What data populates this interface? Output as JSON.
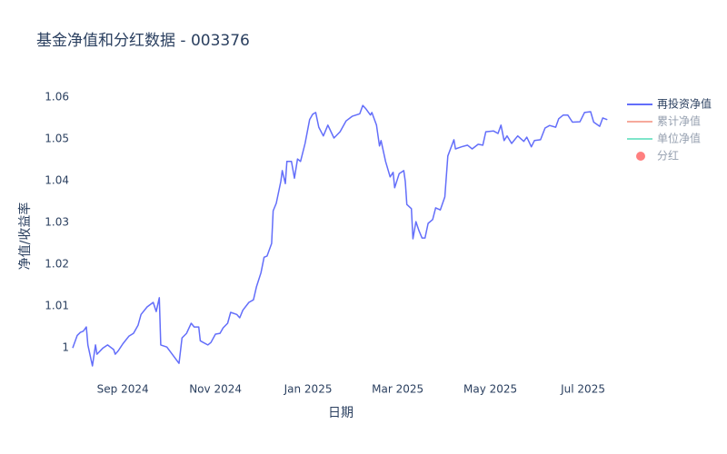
{
  "chart_data": {
    "type": "line",
    "title": "基金净值和分红数据 - 003376",
    "x_label": "日期",
    "y_label": "净值/收益率",
    "grid": false,
    "legend": "right",
    "xlim": [
      "2024-07-30",
      "2025-07-24"
    ],
    "xticks": [
      {
        "value": "2024-09-01",
        "label": "Sep 2024"
      },
      {
        "value": "2024-11-01",
        "label": "Nov 2024"
      },
      {
        "value": "2025-01-01",
        "label": "Jan 2025"
      },
      {
        "value": "2025-03-01",
        "label": "Mar 2025"
      },
      {
        "value": "2025-05-01",
        "label": "May 2025"
      },
      {
        "value": "2025-07-01",
        "label": "Jul 2025"
      }
    ],
    "ylim": [
      0.992,
      1.0615
    ],
    "yticks": [
      1,
      1.01,
      1.02,
      1.03,
      1.04,
      1.05,
      1.06
    ],
    "x": [
      "2024-07-30",
      "2024-08-02",
      "2024-08-04",
      "2024-08-06",
      "2024-08-08",
      "2024-08-09",
      "2024-08-12",
      "2024-08-14",
      "2024-08-15",
      "2024-08-19",
      "2024-08-22",
      "2024-08-26",
      "2024-08-27",
      "2024-08-29",
      "2024-09-01",
      "2024-09-05",
      "2024-09-08",
      "2024-09-11",
      "2024-09-13",
      "2024-09-17",
      "2024-09-21",
      "2024-09-23",
      "2024-09-25",
      "2024-09-26",
      "2024-09-30",
      "2024-10-08",
      "2024-10-10",
      "2024-10-13",
      "2024-10-16",
      "2024-10-18",
      "2024-10-21",
      "2024-10-22",
      "2024-10-24",
      "2024-10-27",
      "2024-10-29",
      "2024-11-01",
      "2024-11-04",
      "2024-11-06",
      "2024-11-09",
      "2024-11-11",
      "2024-11-15",
      "2024-11-17",
      "2024-11-19",
      "2024-11-23",
      "2024-11-26",
      "2024-11-28",
      "2024-12-01",
      "2024-12-03",
      "2024-12-05",
      "2024-12-08",
      "2024-12-09",
      "2024-12-11",
      "2024-12-14",
      "2024-12-15",
      "2024-12-17",
      "2024-12-18",
      "2024-12-21",
      "2024-12-23",
      "2024-12-25",
      "2024-12-27",
      "2024-12-30",
      "2025-01-02",
      "2025-01-04",
      "2025-01-06",
      "2025-01-08",
      "2025-01-11",
      "2025-01-14",
      "2025-01-18",
      "2025-01-22",
      "2025-01-26",
      "2025-01-30",
      "2025-02-04",
      "2025-02-06",
      "2025-02-08",
      "2025-02-11",
      "2025-02-12",
      "2025-02-15",
      "2025-02-17",
      "2025-02-18",
      "2025-02-21",
      "2025-02-24",
      "2025-02-26",
      "2025-02-27",
      "2025-03-02",
      "2025-03-05",
      "2025-03-06",
      "2025-03-07",
      "2025-03-10",
      "2025-03-11",
      "2025-03-13",
      "2025-03-15",
      "2025-03-17",
      "2025-03-19",
      "2025-03-21",
      "2025-03-24",
      "2025-03-26",
      "2025-03-29",
      "2025-04-01",
      "2025-04-03",
      "2025-04-07",
      "2025-04-08",
      "2025-04-12",
      "2025-04-16",
      "2025-04-19",
      "2025-04-23",
      "2025-04-26",
      "2025-04-28",
      "2025-05-03",
      "2025-05-06",
      "2025-05-08",
      "2025-05-10",
      "2025-05-12",
      "2025-05-15",
      "2025-05-19",
      "2025-05-23",
      "2025-05-25",
      "2025-05-28",
      "2025-05-30",
      "2025-06-03",
      "2025-06-06",
      "2025-06-09",
      "2025-06-13",
      "2025-06-15",
      "2025-06-18",
      "2025-06-21",
      "2025-06-24",
      "2025-06-29",
      "2025-07-02",
      "2025-07-06",
      "2025-07-08",
      "2025-07-12",
      "2025-07-14",
      "2025-07-17"
    ],
    "series": [
      {
        "name": "再投资净值",
        "color": "#636efa",
        "values": [
          1.0,
          1.003,
          1.0037,
          1.004,
          1.005,
          1.0007,
          0.9957,
          1.0007,
          0.9985,
          1.0,
          1.0007,
          0.9996,
          0.9985,
          0.9993,
          1.001,
          1.0028,
          1.0035,
          1.0054,
          1.008,
          1.0098,
          1.0109,
          1.0087,
          1.012,
          1.0007,
          1.0002,
          0.9963,
          1.0024,
          1.0035,
          1.0059,
          1.005,
          1.005,
          1.0017,
          1.0013,
          1.0007,
          1.0013,
          1.0033,
          1.0035,
          1.0048,
          1.0059,
          1.0085,
          1.008,
          1.0072,
          1.009,
          1.0109,
          1.0115,
          1.0146,
          1.018,
          1.0217,
          1.022,
          1.025,
          1.0328,
          1.0346,
          1.0398,
          1.0424,
          1.0393,
          1.0446,
          1.0446,
          1.0406,
          1.0452,
          1.0446,
          1.0489,
          1.0546,
          1.0559,
          1.0563,
          1.0528,
          1.0507,
          1.0533,
          1.0502,
          1.0517,
          1.0543,
          1.0554,
          1.056,
          1.058,
          1.0572,
          1.0557,
          1.0563,
          1.0533,
          1.0483,
          1.0496,
          1.0446,
          1.0409,
          1.042,
          1.0383,
          1.0417,
          1.0424,
          1.0398,
          1.0343,
          1.0333,
          1.0261,
          1.0302,
          1.028,
          1.0263,
          1.0263,
          1.0298,
          1.0307,
          1.0335,
          1.033,
          1.0361,
          1.0459,
          1.0498,
          1.0476,
          1.0481,
          1.0485,
          1.0476,
          1.0487,
          1.0485,
          1.0517,
          1.0519,
          1.0513,
          1.0533,
          1.0496,
          1.0507,
          1.0489,
          1.0507,
          1.0494,
          1.0504,
          1.0481,
          1.0496,
          1.0498,
          1.0526,
          1.0532,
          1.0528,
          1.0548,
          1.0557,
          1.0557,
          1.054,
          1.0541,
          1.0563,
          1.0565,
          1.054,
          1.053,
          1.055,
          1.0546
        ]
      },
      {
        "name": "累计净值",
        "color": "#EF553B",
        "visible": "legendonly"
      },
      {
        "name": "单位净值",
        "color": "#00cc96",
        "visible": "legendonly"
      },
      {
        "name": "分红",
        "color": "#ff0000",
        "mode": "markers",
        "visible": "legendonly"
      }
    ]
  }
}
